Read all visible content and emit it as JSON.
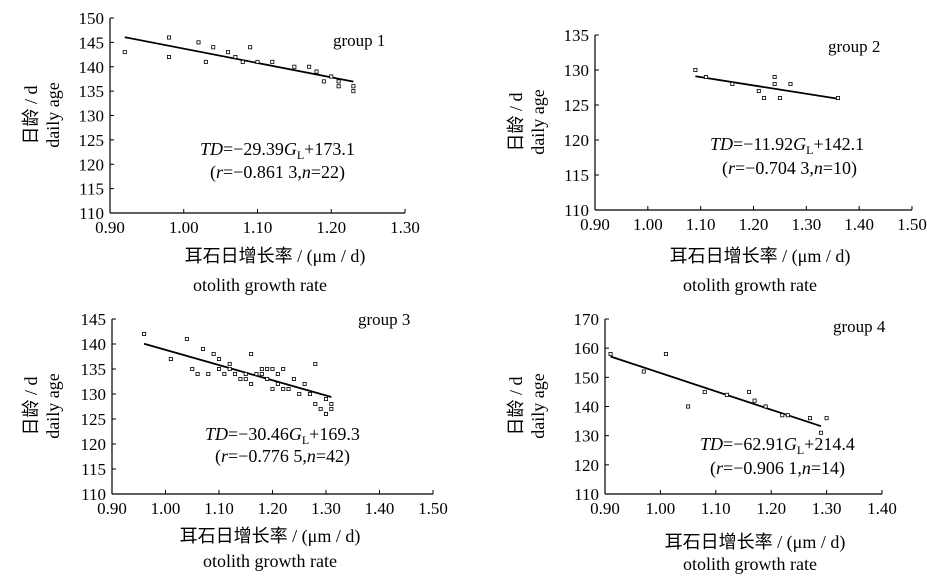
{
  "chart_data": [
    {
      "type": "scatter",
      "group_label": "group 1",
      "equation": {
        "lhs": "TD",
        "coef": "=−29.39",
        "var": "G",
        "sub": "L",
        "intercept": "+173.1"
      },
      "stats": {
        "r": "−0.861 3",
        "n": "22"
      },
      "xlabel": {
        "cn": "耳石日增长率 / (μm / d)",
        "en": "otolith growth rate"
      },
      "ylabel": {
        "cn": "日龄 / d",
        "en": "daily age"
      },
      "xticks": [
        "0.90",
        "1.00",
        "1.10",
        "1.20",
        "1.30"
      ],
      "yticks": [
        "110",
        "115",
        "120",
        "125",
        "130",
        "135",
        "140",
        "145",
        "150"
      ],
      "xlim": [
        0.9,
        1.3
      ],
      "ylim": [
        110,
        150
      ],
      "fit": {
        "slope": -29.39,
        "intercept": 173.1,
        "x": [
          0.92,
          1.23
        ]
      },
      "x": [
        0.92,
        0.98,
        0.98,
        1.02,
        1.03,
        1.04,
        1.06,
        1.07,
        1.08,
        1.09,
        1.1,
        1.12,
        1.15,
        1.17,
        1.18,
        1.18,
        1.19,
        1.2,
        1.21,
        1.21,
        1.23,
        1.23
      ],
      "y": [
        143,
        146,
        142,
        145,
        141,
        144,
        143,
        142,
        141,
        144,
        141,
        141,
        140,
        140,
        139,
        139,
        137,
        138,
        137,
        136,
        136,
        135
      ]
    },
    {
      "type": "scatter",
      "group_label": "group 2",
      "equation": {
        "lhs": "TD",
        "coef": "=−11.92",
        "var": "G",
        "sub": "L",
        "intercept": "+142.1"
      },
      "stats": {
        "r": "−0.704 3",
        "n": "10"
      },
      "xlabel": {
        "cn": "耳石日增长率 / (μm / d)",
        "en": "otolith growth rate"
      },
      "ylabel": {
        "cn": "日龄 / d",
        "en": "daily age"
      },
      "xticks": [
        "0.90",
        "1.00",
        "1.10",
        "1.20",
        "1.30",
        "1.40",
        "1.50"
      ],
      "yticks": [
        "110",
        "115",
        "120",
        "125",
        "130",
        "135"
      ],
      "xlim": [
        0.9,
        1.5
      ],
      "ylim": [
        110,
        135
      ],
      "fit": {
        "slope": -11.92,
        "intercept": 142.1,
        "x": [
          1.09,
          1.36
        ]
      },
      "x": [
        1.09,
        1.11,
        1.16,
        1.21,
        1.22,
        1.24,
        1.24,
        1.25,
        1.27,
        1.36
      ],
      "y": [
        130,
        129,
        128,
        127,
        126,
        129,
        128,
        126,
        128,
        126
      ]
    },
    {
      "type": "scatter",
      "group_label": "group 3",
      "equation": {
        "lhs": "TD",
        "coef": "=−30.46",
        "var": "G",
        "sub": "L",
        "intercept": "+169.3"
      },
      "stats": {
        "r": "−0.776 5",
        "n": "42"
      },
      "xlabel": {
        "cn": "耳石日增长率 / (μm / d)",
        "en": "otolith growth rate"
      },
      "ylabel": {
        "cn": "日龄 / d",
        "en": "daily age"
      },
      "xticks": [
        "0.90",
        "1.00",
        "1.10",
        "1.20",
        "1.30",
        "1.40",
        "1.50"
      ],
      "yticks": [
        "110",
        "115",
        "120",
        "125",
        "130",
        "135",
        "140",
        "145"
      ],
      "xlim": [
        0.9,
        1.5
      ],
      "ylim": [
        110,
        145
      ],
      "fit": {
        "slope": -30.46,
        "intercept": 169.3,
        "x": [
          0.96,
          1.31
        ]
      },
      "x": [
        0.96,
        1.01,
        1.04,
        1.05,
        1.06,
        1.07,
        1.08,
        1.09,
        1.1,
        1.11,
        1.12,
        1.12,
        1.13,
        1.14,
        1.15,
        1.15,
        1.16,
        1.16,
        1.17,
        1.18,
        1.18,
        1.19,
        1.2,
        1.2,
        1.21,
        1.21,
        1.22,
        1.22,
        1.23,
        1.24,
        1.25,
        1.26,
        1.27,
        1.28,
        1.28,
        1.29,
        1.3,
        1.3,
        1.31,
        1.31,
        1.19,
        1.1
      ],
      "y": [
        142,
        137,
        141,
        135,
        134,
        139,
        134,
        138,
        135,
        134,
        135,
        136,
        134,
        133,
        134,
        133,
        138,
        132,
        134,
        134,
        135,
        133,
        135,
        131,
        134,
        132,
        131,
        135,
        131,
        133,
        130,
        132,
        130,
        128,
        136,
        127,
        126,
        129,
        127,
        128,
        135,
        137
      ]
    },
    {
      "type": "scatter",
      "group_label": "group 4",
      "equation": {
        "lhs": "TD",
        "coef": "=−62.91",
        "var": "G",
        "sub": "L",
        "intercept": "+214.4"
      },
      "stats": {
        "r": "−0.906 1",
        "n": "14"
      },
      "xlabel": {
        "cn": "耳石日增长率 / (μm / d)",
        "en": "otolith growth rate"
      },
      "ylabel": {
        "cn": "日龄 / d",
        "en": "daily age"
      },
      "xticks": [
        "0.90",
        "1.00",
        "1.10",
        "1.20",
        "1.30",
        "1.40"
      ],
      "yticks": [
        "110",
        "120",
        "130",
        "140",
        "150",
        "160",
        "170"
      ],
      "xlim": [
        0.9,
        1.4
      ],
      "ylim": [
        110,
        170
      ],
      "fit": {
        "slope": -62.91,
        "intercept": 214.4,
        "x": [
          0.91,
          1.29
        ]
      },
      "x": [
        0.91,
        0.97,
        1.01,
        1.05,
        1.08,
        1.12,
        1.16,
        1.17,
        1.19,
        1.22,
        1.23,
        1.27,
        1.29,
        1.3
      ],
      "y": [
        158,
        152,
        158,
        140,
        145,
        144,
        145,
        142,
        140,
        137,
        137,
        136,
        131,
        136
      ]
    }
  ]
}
